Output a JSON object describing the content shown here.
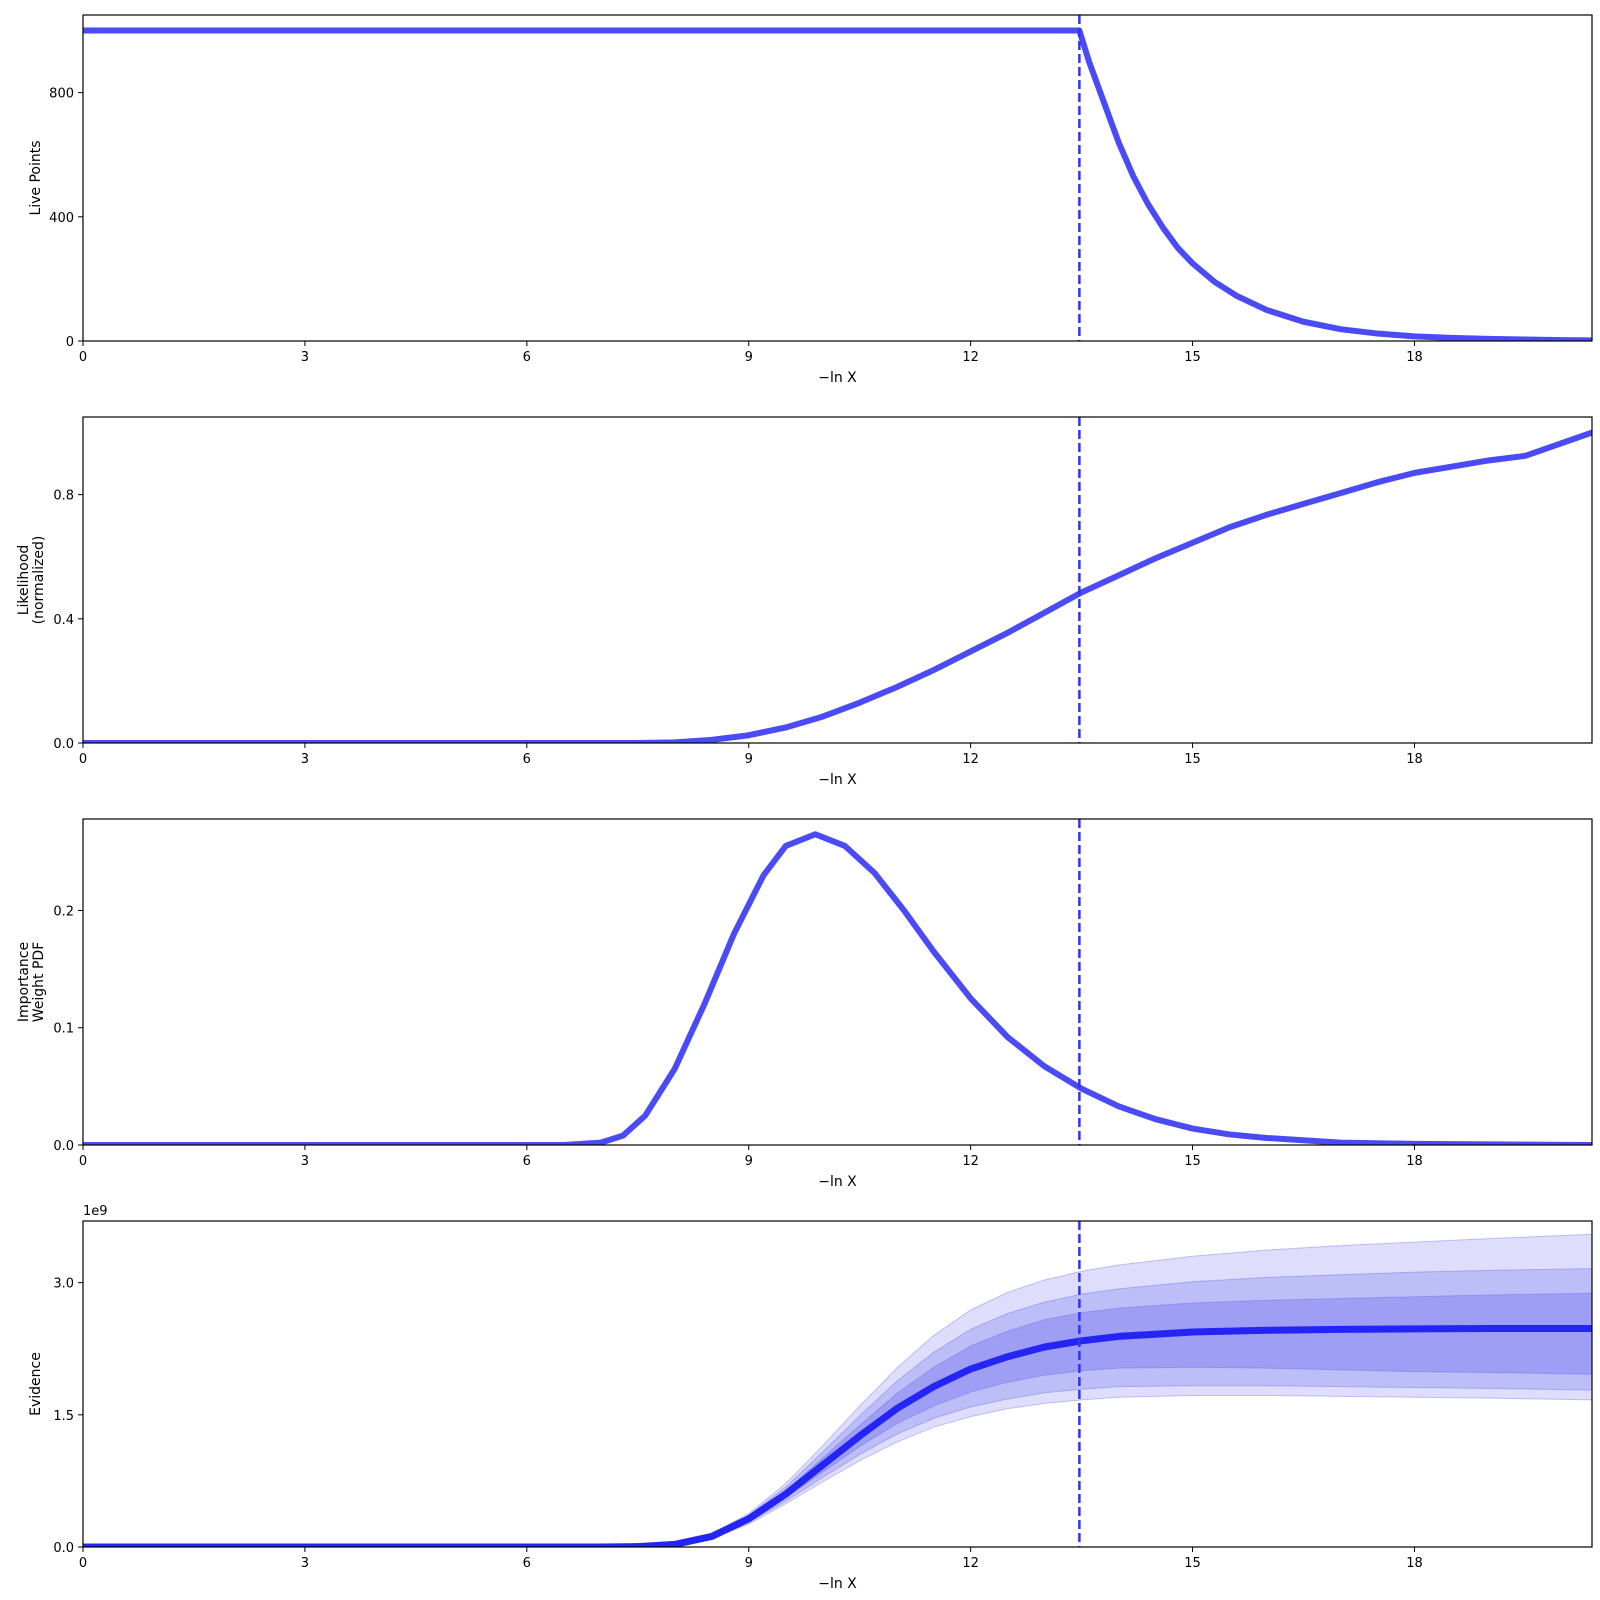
{
  "colors": {
    "line": "#4b4bf5",
    "vline": "#3333ee",
    "evidence_line": "#2424f5",
    "band": "#5b5bf0"
  },
  "chart_data": [
    {
      "type": "line",
      "xlabel": "−ln X",
      "ylabel": [
        "Live Points"
      ],
      "xlim": [
        0,
        20.4
      ],
      "ylim": [
        0,
        1050
      ],
      "xticks": [
        0,
        3,
        6,
        9,
        12,
        15,
        18
      ],
      "yticks": [
        0,
        400,
        800
      ],
      "ytick_labels": [
        "0",
        "400",
        "800"
      ],
      "vline_x": 13.47,
      "series": [
        {
          "x": [
            0,
            13.47,
            13.6,
            13.8,
            14.0,
            14.2,
            14.4,
            14.6,
            14.8,
            15.0,
            15.3,
            15.6,
            16.0,
            16.5,
            17.0,
            17.5,
            18.0,
            18.5,
            19.0,
            19.5,
            20.0,
            20.4
          ],
          "y": [
            1000,
            1000,
            900,
            770,
            640,
            530,
            440,
            365,
            300,
            250,
            190,
            145,
            100,
            62,
            38,
            24,
            15,
            10,
            7,
            5,
            3,
            2
          ]
        }
      ]
    },
    {
      "type": "line",
      "xlabel": "−ln X",
      "ylabel": [
        "Likelihood",
        "(normalized)"
      ],
      "xlim": [
        0,
        20.4
      ],
      "ylim": [
        0,
        1.05
      ],
      "xticks": [
        0,
        3,
        6,
        9,
        12,
        15,
        18
      ],
      "yticks": [
        0,
        0.4,
        0.8
      ],
      "ytick_labels": [
        "0.0",
        "0.4",
        "0.8"
      ],
      "vline_x": 13.47,
      "series": [
        {
          "x": [
            0,
            7.5,
            8.0,
            8.5,
            9.0,
            9.5,
            10.0,
            10.5,
            11.0,
            11.5,
            12.0,
            12.5,
            13.0,
            13.5,
            14.0,
            14.5,
            15.0,
            15.5,
            16.0,
            16.5,
            17.0,
            17.5,
            18.0,
            18.5,
            19.0,
            19.5,
            20.4
          ],
          "y": [
            0,
            0,
            0.002,
            0.01,
            0.025,
            0.05,
            0.085,
            0.13,
            0.18,
            0.235,
            0.295,
            0.355,
            0.42,
            0.485,
            0.54,
            0.595,
            0.645,
            0.695,
            0.735,
            0.77,
            0.805,
            0.84,
            0.87,
            0.89,
            0.91,
            0.925,
            1.0
          ]
        }
      ]
    },
    {
      "type": "line",
      "xlabel": "−ln X",
      "ylabel": [
        "Importance",
        "Weight PDF"
      ],
      "xlim": [
        0,
        20.4
      ],
      "ylim": [
        0,
        0.278
      ],
      "xticks": [
        0,
        3,
        6,
        9,
        12,
        15,
        18
      ],
      "yticks": [
        0,
        0.1,
        0.2
      ],
      "ytick_labels": [
        "0.0",
        "0.1",
        "0.2"
      ],
      "vline_x": 13.47,
      "series": [
        {
          "x": [
            0,
            6.5,
            7.0,
            7.3,
            7.6,
            8.0,
            8.4,
            8.8,
            9.2,
            9.5,
            9.9,
            10.3,
            10.7,
            11.1,
            11.5,
            12.0,
            12.5,
            13.0,
            13.5,
            14.0,
            14.5,
            15.0,
            15.5,
            16.0,
            17.0,
            18.0,
            19.0,
            20.4
          ],
          "y": [
            0,
            0,
            0.002,
            0.008,
            0.025,
            0.065,
            0.12,
            0.18,
            0.23,
            0.255,
            0.265,
            0.255,
            0.232,
            0.2,
            0.165,
            0.125,
            0.092,
            0.067,
            0.048,
            0.033,
            0.022,
            0.014,
            0.009,
            0.006,
            0.002,
            0.001,
            0.0005,
            0
          ]
        }
      ]
    },
    {
      "type": "area",
      "xlabel": "−ln X",
      "ylabel": [
        "Evidence"
      ],
      "y_offset_label": "1e9",
      "xlim": [
        0,
        20.4
      ],
      "ylim": [
        0,
        3.7
      ],
      "xticks": [
        0,
        3,
        6,
        9,
        12,
        15,
        18
      ],
      "yticks": [
        0,
        1.5,
        3.0
      ],
      "ytick_labels": [
        "0.0",
        "1.5",
        "3.0"
      ],
      "vline_x": 13.47,
      "x": [
        0,
        7.0,
        7.5,
        8.0,
        8.5,
        9.0,
        9.5,
        10.0,
        10.5,
        11.0,
        11.5,
        12.0,
        12.5,
        13.0,
        13.5,
        14.0,
        15.0,
        16.0,
        17.0,
        18.0,
        19.0,
        20.4
      ],
      "series": [
        {
          "y": [
            0,
            0,
            0.005,
            0.03,
            0.12,
            0.32,
            0.6,
            0.93,
            1.26,
            1.57,
            1.82,
            2.02,
            2.16,
            2.27,
            2.34,
            2.39,
            2.44,
            2.46,
            2.47,
            2.475,
            2.48,
            2.48
          ]
        }
      ],
      "bands": [
        {
          "lower": [
            0,
            0,
            0.005,
            0.03,
            0.11,
            0.3,
            0.56,
            0.85,
            1.14,
            1.4,
            1.6,
            1.76,
            1.87,
            1.95,
            2.0,
            2.03,
            2.04,
            2.03,
            2.01,
            1.99,
            1.98,
            1.96
          ],
          "upper": [
            0,
            0,
            0.005,
            0.03,
            0.13,
            0.34,
            0.64,
            1.01,
            1.38,
            1.74,
            2.04,
            2.28,
            2.45,
            2.58,
            2.66,
            2.71,
            2.77,
            2.8,
            2.82,
            2.84,
            2.86,
            2.88
          ]
        },
        {
          "lower": [
            0,
            0,
            0.005,
            0.03,
            0.1,
            0.28,
            0.52,
            0.79,
            1.05,
            1.28,
            1.46,
            1.59,
            1.68,
            1.75,
            1.79,
            1.82,
            1.83,
            1.83,
            1.82,
            1.81,
            1.8,
            1.78
          ],
          "upper": [
            0,
            0,
            0.005,
            0.03,
            0.14,
            0.36,
            0.68,
            1.08,
            1.49,
            1.88,
            2.21,
            2.47,
            2.65,
            2.78,
            2.87,
            2.93,
            3.01,
            3.06,
            3.09,
            3.12,
            3.14,
            3.16
          ]
        },
        {
          "lower": [
            0,
            0,
            0.005,
            0.03,
            0.095,
            0.26,
            0.49,
            0.74,
            0.98,
            1.19,
            1.36,
            1.48,
            1.57,
            1.63,
            1.67,
            1.7,
            1.72,
            1.72,
            1.71,
            1.7,
            1.69,
            1.67
          ],
          "upper": [
            0,
            0,
            0.005,
            0.03,
            0.15,
            0.38,
            0.72,
            1.15,
            1.6,
            2.03,
            2.4,
            2.69,
            2.89,
            3.03,
            3.13,
            3.2,
            3.3,
            3.37,
            3.42,
            3.46,
            3.5,
            3.55
          ]
        }
      ]
    }
  ]
}
